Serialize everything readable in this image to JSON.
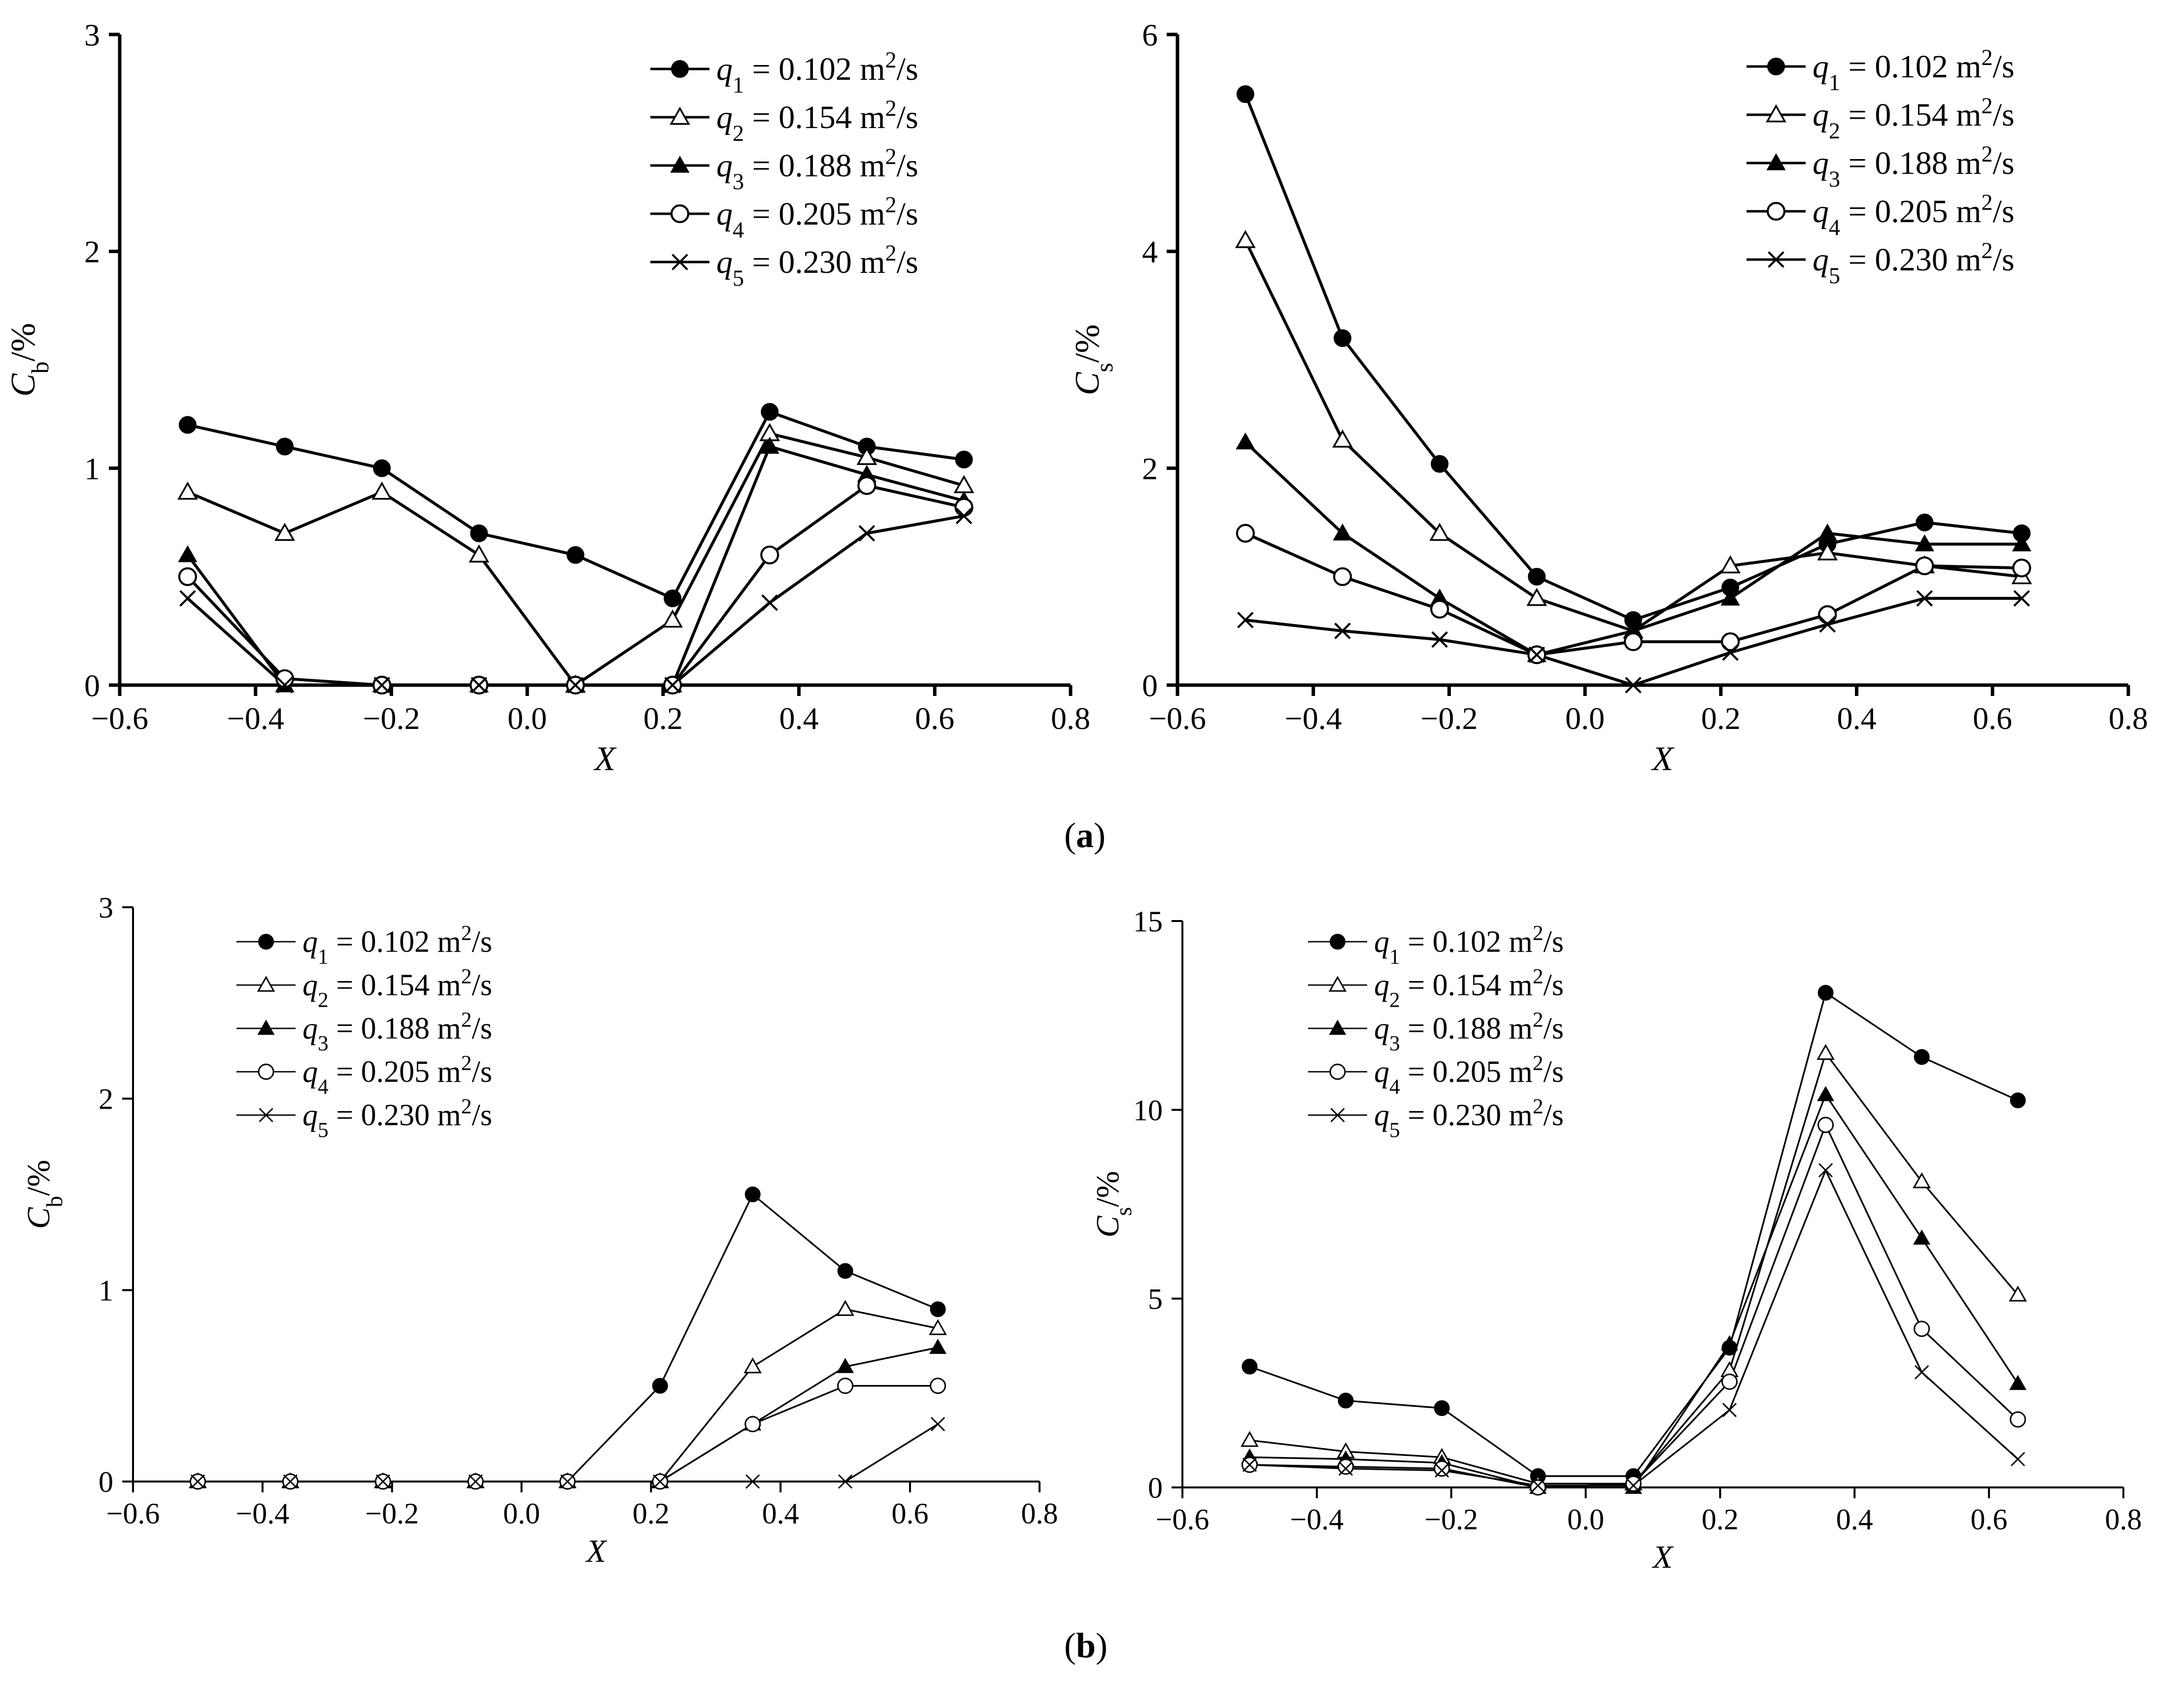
{
  "figure": {
    "caption_a": "a",
    "caption_b": "b",
    "caption_open": "(",
    "caption_close": ")"
  },
  "series_legend": [
    {
      "sym": "q",
      "sub": "1",
      "text": " = 0.102 m",
      "sup": "2",
      "tail": "/s",
      "marker": "circle-filled"
    },
    {
      "sym": "q",
      "sub": "2",
      "text": " = 0.154 m",
      "sup": "2",
      "tail": "/s",
      "marker": "triangle-open"
    },
    {
      "sym": "q",
      "sub": "3",
      "text": " = 0.188 m",
      "sup": "2",
      "tail": "/s",
      "marker": "triangle-filled"
    },
    {
      "sym": "q",
      "sub": "4",
      "text": " = 0.205 m",
      "sup": "2",
      "tail": "/s",
      "marker": "circle-open"
    },
    {
      "sym": "q",
      "sub": "5",
      "text": " = 0.230 m",
      "sup": "2",
      "tail": "/s",
      "marker": "cross"
    }
  ],
  "chart_data": [
    {
      "id": "a-left",
      "type": "line",
      "panel": "a",
      "xlabel": "X",
      "ylabel_main": "C",
      "ylabel_sub": "b",
      "ylabel_tail": "/%",
      "xlim": [
        -0.6,
        0.8
      ],
      "ylim": [
        0,
        3
      ],
      "xticks": [
        -0.6,
        -0.4,
        -0.2,
        0.0,
        0.2,
        0.4,
        0.6,
        0.8
      ],
      "xtick_labels": [
        "−0.6",
        "−0.4",
        "−0.2",
        "0.0",
        "0.2",
        "0.4",
        "0.6",
        "0.8"
      ],
      "yticks": [
        0,
        1,
        2,
        3
      ],
      "ytick_labels": [
        "0",
        "1",
        "2",
        "3"
      ],
      "x": [
        -0.5,
        -0.357,
        -0.214,
        -0.071,
        0.071,
        0.214,
        0.357,
        0.5,
        0.643
      ],
      "series": [
        {
          "name": "q1",
          "values": [
            1.2,
            1.1,
            1.0,
            0.7,
            0.6,
            0.4,
            1.26,
            1.1,
            1.04
          ]
        },
        {
          "name": "q2",
          "values": [
            0.89,
            0.7,
            0.89,
            0.6,
            0.0,
            0.3,
            1.16,
            1.05,
            0.92
          ]
        },
        {
          "name": "q3",
          "values": [
            0.6,
            0.0,
            0.0,
            0.0,
            0.0,
            0.0,
            1.1,
            0.97,
            0.85
          ]
        },
        {
          "name": "q4",
          "values": [
            0.5,
            0.03,
            0.0,
            0.0,
            0.0,
            0.0,
            0.6,
            0.92,
            0.82
          ]
        },
        {
          "name": "q5",
          "values": [
            0.4,
            0.0,
            0.0,
            0.0,
            0.0,
            0.0,
            0.38,
            0.7,
            0.78
          ]
        }
      ]
    },
    {
      "id": "a-right",
      "type": "line",
      "panel": "a",
      "xlabel": "X",
      "ylabel_main": "C",
      "ylabel_sub": "s",
      "ylabel_tail": "/%",
      "xlim": [
        -0.6,
        0.8
      ],
      "ylim": [
        0,
        6
      ],
      "xticks": [
        -0.6,
        -0.4,
        -0.2,
        0.0,
        0.2,
        0.4,
        0.6,
        0.8
      ],
      "xtick_labels": [
        "−0.6",
        "−0.4",
        "−0.2",
        "0.0",
        "0.2",
        "0.4",
        "0.6",
        "0.8"
      ],
      "yticks": [
        0,
        2,
        4,
        6
      ],
      "ytick_labels": [
        "0",
        "2",
        "4",
        "6"
      ],
      "x": [
        -0.5,
        -0.357,
        -0.214,
        -0.071,
        0.071,
        0.214,
        0.357,
        0.5,
        0.643
      ],
      "series": [
        {
          "name": "q1",
          "values": [
            5.45,
            3.2,
            2.04,
            1.0,
            0.6,
            0.9,
            1.3,
            1.5,
            1.4
          ]
        },
        {
          "name": "q2",
          "values": [
            4.1,
            2.26,
            1.4,
            0.8,
            0.5,
            1.1,
            1.22,
            1.1,
            1.0
          ]
        },
        {
          "name": "q3",
          "values": [
            2.24,
            1.4,
            0.8,
            0.28,
            0.5,
            0.8,
            1.4,
            1.3,
            1.3
          ]
        },
        {
          "name": "q4",
          "values": [
            1.4,
            1.0,
            0.7,
            0.28,
            0.4,
            0.4,
            0.65,
            1.1,
            1.08
          ]
        },
        {
          "name": "q5",
          "values": [
            0.6,
            0.5,
            0.42,
            0.28,
            0.0,
            0.3,
            0.56,
            0.8,
            0.8
          ]
        }
      ]
    },
    {
      "id": "b-left",
      "type": "line",
      "panel": "b",
      "xlabel": "X",
      "ylabel_main": "C",
      "ylabel_sub": "b",
      "ylabel_tail": "/%",
      "xlim": [
        -0.6,
        0.8
      ],
      "ylim": [
        0,
        3
      ],
      "xticks": [
        -0.6,
        -0.4,
        -0.2,
        0.0,
        0.2,
        0.4,
        0.6,
        0.8
      ],
      "xtick_labels": [
        "−0.6",
        "−0.4",
        "−0.2",
        "0.0",
        "0.2",
        "0.4",
        "0.6",
        "0.8"
      ],
      "yticks": [
        0,
        1,
        2,
        3
      ],
      "ytick_labels": [
        "0",
        "1",
        "2",
        "3"
      ],
      "x": [
        -0.5,
        -0.357,
        -0.214,
        -0.071,
        0.071,
        0.214,
        0.357,
        0.5,
        0.643
      ],
      "series": [
        {
          "name": "q1",
          "values": [
            0,
            0,
            0,
            0,
            0,
            0.5,
            1.5,
            1.1,
            0.9
          ]
        },
        {
          "name": "q2",
          "values": [
            0,
            0,
            0,
            0,
            0,
            0,
            0.6,
            0.9,
            0.8
          ]
        },
        {
          "name": "q3",
          "values": [
            0,
            0,
            0,
            0,
            0,
            0,
            0.3,
            0.6,
            0.7
          ]
        },
        {
          "name": "q4",
          "values": [
            0,
            0,
            0,
            0,
            0,
            0,
            0.3,
            0.5,
            0.5
          ]
        },
        {
          "name": "q5",
          "values": [
            0,
            0,
            0,
            0,
            0,
            0,
            0.0,
            0.0,
            0.3
          ]
        }
      ]
    },
    {
      "id": "b-right",
      "type": "line",
      "panel": "b",
      "xlabel": "X",
      "ylabel_main": "C",
      "ylabel_sub": "s",
      "ylabel_tail": "/%",
      "xlim": [
        -0.6,
        0.8
      ],
      "ylim": [
        0,
        15
      ],
      "xticks": [
        -0.6,
        -0.4,
        -0.2,
        0.0,
        0.2,
        0.4,
        0.6,
        0.8
      ],
      "xtick_labels": [
        "−0.6",
        "−0.4",
        "−0.2",
        "0.0",
        "0.2",
        "0.4",
        "0.6",
        "0.8"
      ],
      "yticks": [
        0,
        5,
        10,
        15
      ],
      "ytick_labels": [
        "0",
        "5",
        "10",
        "15"
      ],
      "x": [
        -0.5,
        -0.357,
        -0.214,
        -0.071,
        0.071,
        0.214,
        0.357,
        0.5,
        0.643
      ],
      "series": [
        {
          "name": "q1",
          "values": [
            3.2,
            2.3,
            2.1,
            0.3,
            0.3,
            3.7,
            13.1,
            11.4,
            10.25
          ]
        },
        {
          "name": "q2",
          "values": [
            1.25,
            0.95,
            0.8,
            0.1,
            0.1,
            3.1,
            11.5,
            8.1,
            5.1
          ]
        },
        {
          "name": "q3",
          "values": [
            0.8,
            0.75,
            0.65,
            0.0,
            0.0,
            3.8,
            10.4,
            6.6,
            2.75
          ]
        },
        {
          "name": "q4",
          "values": [
            0.6,
            0.55,
            0.5,
            0.0,
            0.1,
            2.8,
            9.6,
            4.2,
            1.8
          ]
        },
        {
          "name": "q5",
          "values": [
            0.6,
            0.5,
            0.45,
            0.05,
            0.05,
            2.05,
            8.4,
            3.05,
            0.75
          ]
        }
      ]
    }
  ]
}
